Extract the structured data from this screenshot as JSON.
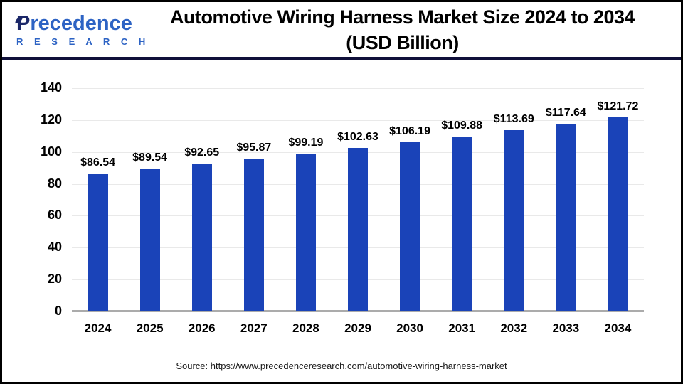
{
  "header": {
    "logo": {
      "name_initial": "P",
      "name_rest": "recedence",
      "subtitle": "R E S E A R C H"
    },
    "title_line1": "Automotive Wiring Harness Market Size 2024 to 2034",
    "title_line2": "(USD Billion)"
  },
  "chart_data": {
    "type": "bar",
    "title": "Automotive Wiring Harness Market Size 2024 to 2034 (USD Billion)",
    "categories": [
      "2024",
      "2025",
      "2026",
      "2027",
      "2028",
      "2029",
      "2030",
      "2031",
      "2032",
      "2033",
      "2034"
    ],
    "values": [
      86.54,
      89.54,
      92.65,
      95.87,
      99.19,
      102.63,
      106.19,
      109.88,
      113.69,
      117.64,
      121.72
    ],
    "value_labels": [
      "$86.54",
      "$89.54",
      "$92.65",
      "$95.87",
      "$99.19",
      "$102.63",
      "$106.19",
      "$109.88",
      "$113.69",
      "$117.64",
      "$121.72"
    ],
    "xlabel": "",
    "ylabel": "",
    "ylim": [
      0,
      140
    ],
    "yticks": [
      0,
      20,
      40,
      60,
      80,
      100,
      120,
      140
    ],
    "grid": true,
    "legend": false,
    "bar_color": "#1a43b8",
    "gridline_color": "#e9e9e9",
    "axis_line_color": "#ababab"
  },
  "footer": {
    "source": "Source: https://www.precedenceresearch.com/automotive-wiring-harness-market"
  }
}
